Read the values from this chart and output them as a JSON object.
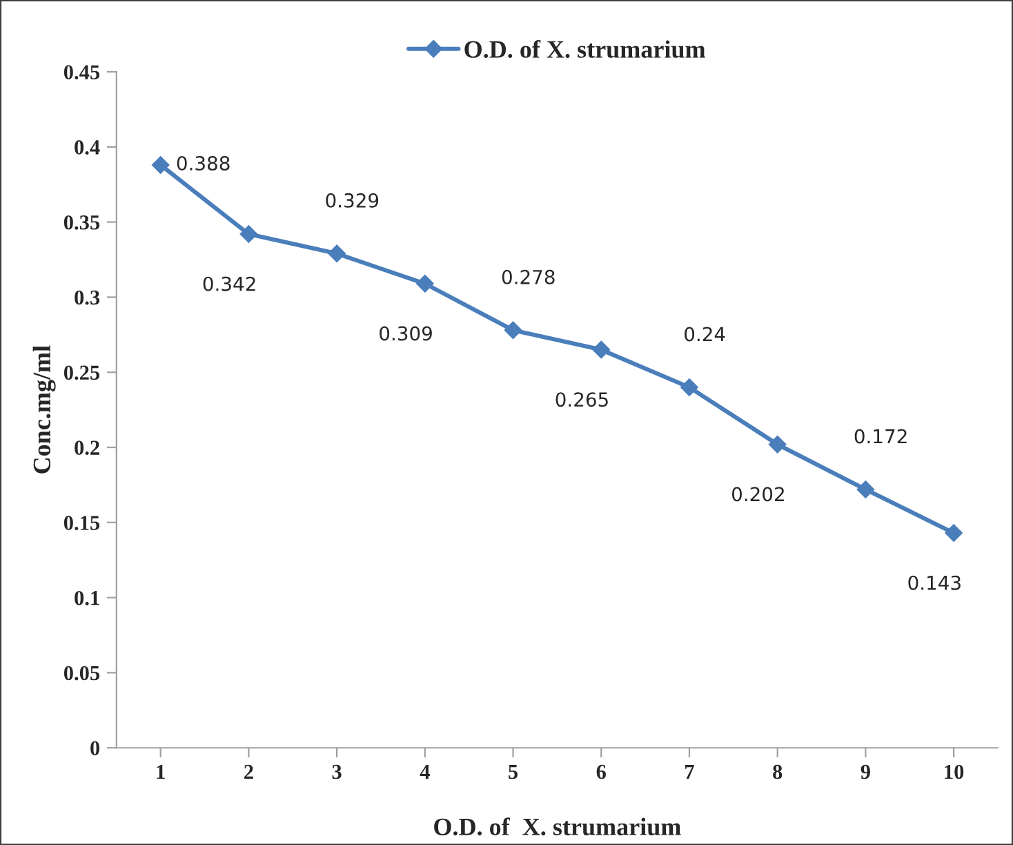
{
  "chart_data": {
    "type": "line",
    "xlabel": "O.D. of  X. strumarium",
    "ylabel": "Conc.mg/ml",
    "categories": [
      "1",
      "2",
      "3",
      "4",
      "5",
      "6",
      "7",
      "8",
      "9",
      "10"
    ],
    "series": [
      {
        "name": "O.D. of X. strumarium",
        "color": "#4a7ebb",
        "values": [
          0.388,
          0.342,
          0.329,
          0.309,
          0.278,
          0.265,
          0.24,
          0.202,
          0.172,
          0.143
        ]
      }
    ],
    "ylim": [
      0,
      0.45
    ],
    "yticks": [
      {
        "value": 0,
        "label": "0"
      },
      0.05,
      0.1,
      0.15,
      0.2,
      0.25,
      0.3,
      0.35,
      0.4,
      0.45
    ],
    "grid": false,
    "legend": "top",
    "marker": "diamond",
    "line_style": "solid",
    "data_labels": true
  }
}
